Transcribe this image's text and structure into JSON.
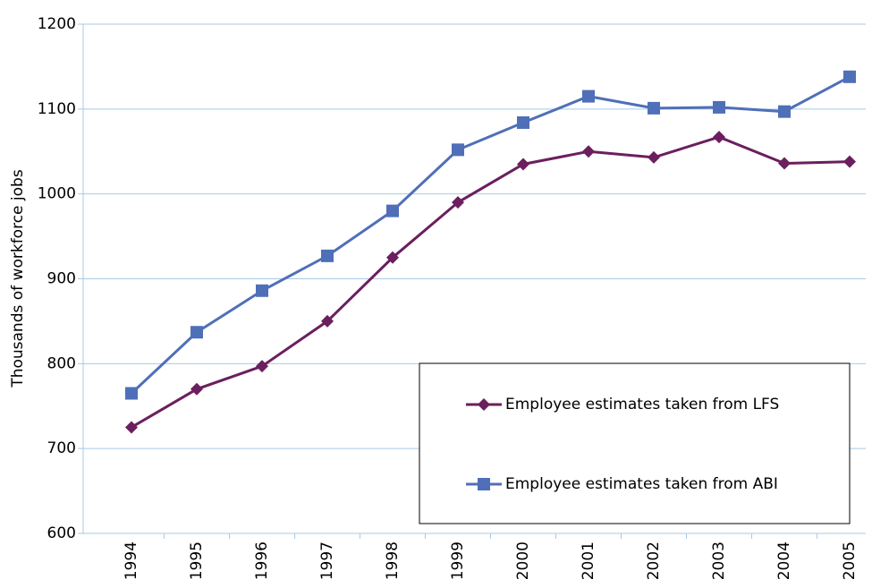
{
  "chart_data": {
    "type": "line",
    "y_label": "Thousands of workforce jobs",
    "categories": [
      "1994",
      "1995",
      "1996",
      "1997",
      "1998",
      "1999",
      "2000",
      "2001",
      "2002",
      "2003",
      "2004",
      "2005"
    ],
    "series": [
      {
        "name": "Employee estimates taken from LFS",
        "color": "#6b1f5e",
        "marker": "diamond",
        "values": [
          725,
          770,
          797,
          850,
          925,
          990,
          1035,
          1050,
          1043,
          1067,
          1036,
          1038
        ]
      },
      {
        "name": "Employee estimates taken from ABI",
        "color": "#4f6fb8",
        "marker": "square",
        "values": [
          765,
          837,
          886,
          927,
          980,
          1052,
          1084,
          1115,
          1101,
          1102,
          1097,
          1138
        ]
      }
    ],
    "ylim": [
      600,
      1200
    ],
    "yticks": [
      600,
      700,
      800,
      900,
      1000,
      1100,
      1200
    ],
    "grid": true,
    "legend": "lower right"
  }
}
